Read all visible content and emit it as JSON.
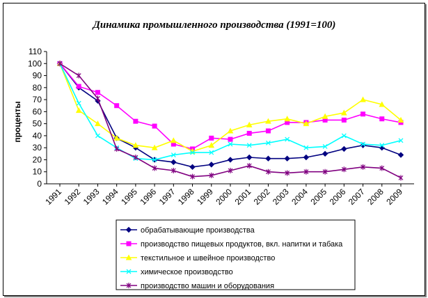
{
  "chart_data": {
    "type": "line",
    "title": "Динамика промышленного производства (1991=100)",
    "ylabel": "проценты",
    "xlabel": "",
    "ylim": [
      0,
      110
    ],
    "ytick_step": 10,
    "grid": false,
    "legend_position": "bottom",
    "x": [
      "1991",
      "1992",
      "1993",
      "1994",
      "1995",
      "1996",
      "1997",
      "1998",
      "1999",
      "2000",
      "2001",
      "2002",
      "2003",
      "2004",
      "2005",
      "2006",
      "2007",
      "2008",
      "2009"
    ],
    "series": [
      {
        "name": "обрабатывающие производства",
        "color": "#000080",
        "marker": "diamond",
        "values": [
          100,
          80,
          69,
          38,
          30,
          20,
          18,
          14,
          16,
          20,
          22,
          21,
          21,
          22,
          25,
          29,
          32,
          30,
          24
        ]
      },
      {
        "name": "производство пищевых продуктов, вкл. напитки и табака",
        "color": "#FF00FF",
        "marker": "square",
        "values": [
          100,
          81,
          76,
          65,
          52,
          48,
          33,
          29,
          38,
          37,
          42,
          44,
          51,
          51,
          53,
          53,
          58,
          54,
          51
        ]
      },
      {
        "name": "текстильное и швейное производство",
        "color": "#FFFF00",
        "marker": "triangle",
        "values": [
          100,
          61,
          50,
          38,
          32,
          30,
          36,
          27,
          32,
          44,
          49,
          52,
          54,
          50,
          56,
          59,
          70,
          66,
          53
        ]
      },
      {
        "name": "химическое производство",
        "color": "#00FFFF",
        "marker": "x",
        "values": [
          100,
          67,
          40,
          30,
          21,
          20,
          24,
          26,
          26,
          33,
          32,
          34,
          37,
          30,
          31,
          40,
          33,
          32,
          36
        ]
      },
      {
        "name": "производство машин и оборудования",
        "color": "#800080",
        "marker": "star",
        "values": [
          100,
          90,
          71,
          29,
          22,
          13,
          11,
          6,
          7,
          11,
          15,
          10,
          9,
          10,
          10,
          12,
          14,
          13,
          5
        ]
      }
    ]
  }
}
